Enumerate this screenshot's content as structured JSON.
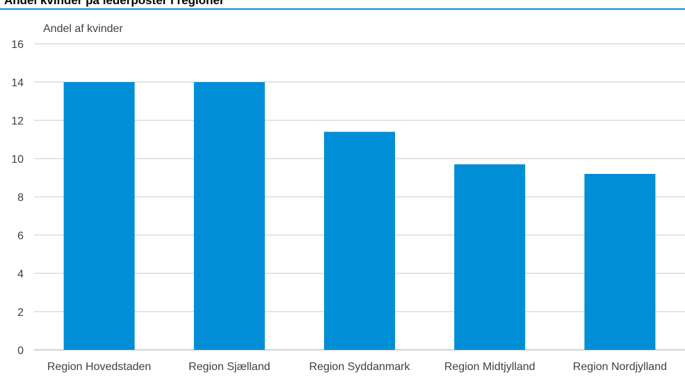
{
  "title": "Andel kvinder på lederposter i regioner",
  "colors": {
    "bar": "#008ed6",
    "grid": "#c8c8c8",
    "rule": "#0090d4",
    "text": "#404040"
  },
  "chart_data": {
    "type": "bar",
    "ylabel": "Andel af kvinder",
    "xlabel": "",
    "ylim": [
      0,
      16
    ],
    "yticks": [
      0,
      2,
      4,
      6,
      8,
      10,
      12,
      14,
      16
    ],
    "grid": true,
    "categories": [
      "Region Hovedstaden",
      "Region Sjælland",
      "Region Syddanmark",
      "Region Midtjylland",
      "Region Nordjylland"
    ],
    "values": [
      14.0,
      14.0,
      11.4,
      9.7,
      9.2
    ]
  }
}
